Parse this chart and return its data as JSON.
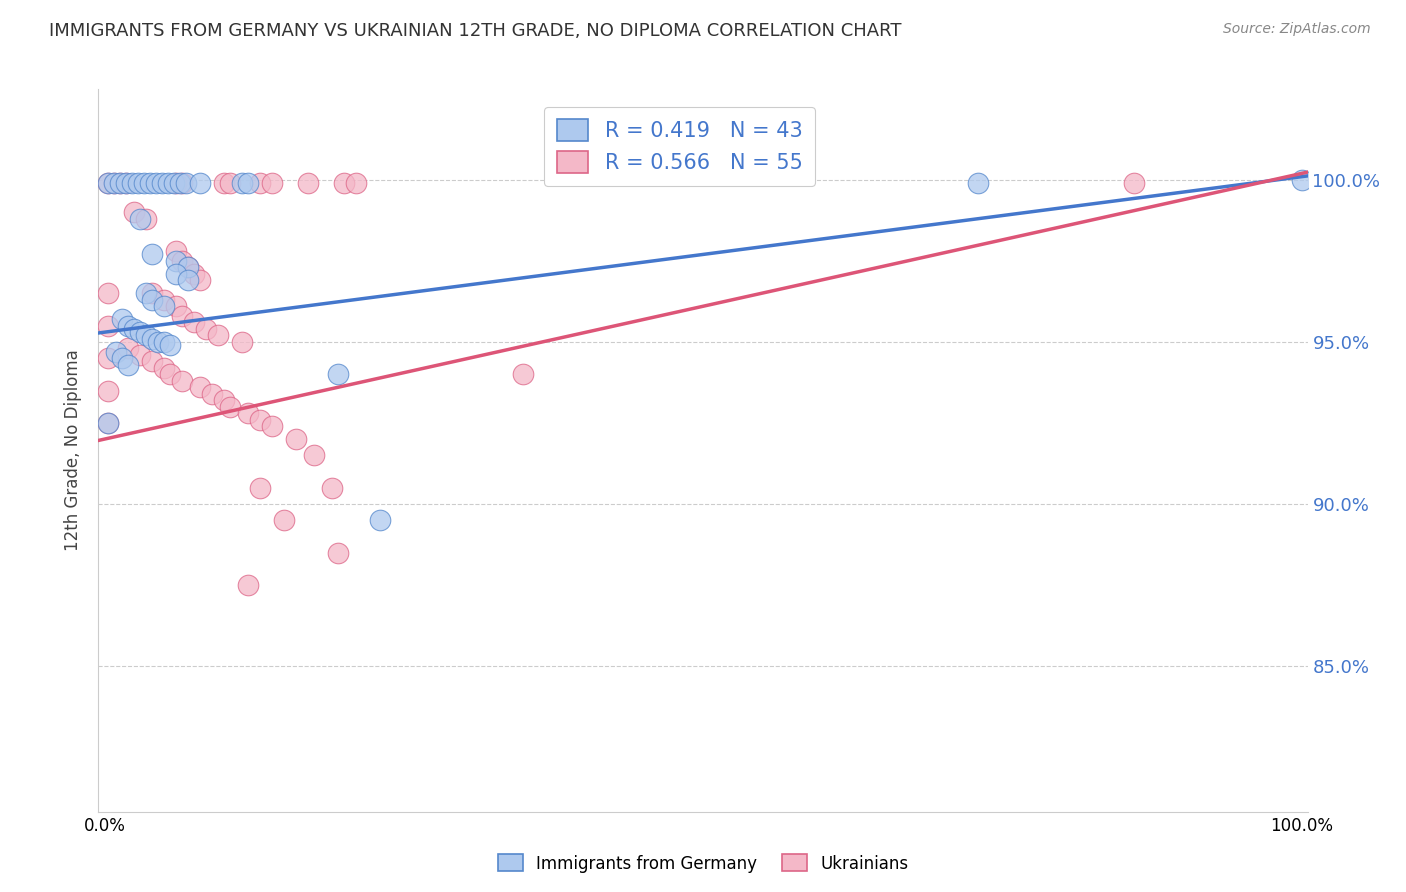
{
  "title": "IMMIGRANTS FROM GERMANY VS UKRAINIAN 12TH GRADE, NO DIPLOMA CORRELATION CHART",
  "source": "Source: ZipAtlas.com",
  "ylabel": "12th Grade, No Diploma",
  "ytick_labels": [
    "100.0%",
    "95.0%",
    "90.0%",
    "85.0%"
  ],
  "ytick_positions": [
    1.0,
    0.95,
    0.9,
    0.85
  ],
  "xlim": [
    -0.005,
    1.005
  ],
  "ylim": [
    0.805,
    1.028
  ],
  "legend_label_blue": "Immigrants from Germany",
  "legend_label_pink": "Ukrainians",
  "R_blue": 0.419,
  "N_blue": 43,
  "R_pink": 0.566,
  "N_pink": 55,
  "background_color": "#ffffff",
  "grid_color": "#cccccc",
  "blue_fill": "#aec9ee",
  "pink_fill": "#f4b8c8",
  "blue_edge": "#5588cc",
  "pink_edge": "#dd6688",
  "blue_line": "#4477cc",
  "pink_line": "#dd5577",
  "blue_points": [
    [
      0.003,
      0.999
    ],
    [
      0.008,
      0.999
    ],
    [
      0.013,
      0.999
    ],
    [
      0.018,
      0.999
    ],
    [
      0.023,
      0.999
    ],
    [
      0.028,
      0.999
    ],
    [
      0.033,
      0.999
    ],
    [
      0.038,
      0.999
    ],
    [
      0.043,
      0.999
    ],
    [
      0.048,
      0.999
    ],
    [
      0.053,
      0.999
    ],
    [
      0.058,
      0.999
    ],
    [
      0.063,
      0.999
    ],
    [
      0.068,
      0.999
    ],
    [
      0.08,
      0.999
    ],
    [
      0.115,
      0.999
    ],
    [
      0.12,
      0.999
    ],
    [
      0.73,
      0.999
    ],
    [
      1.0,
      1.0
    ],
    [
      0.03,
      0.988
    ],
    [
      0.04,
      0.977
    ],
    [
      0.06,
      0.975
    ],
    [
      0.07,
      0.973
    ],
    [
      0.06,
      0.971
    ],
    [
      0.07,
      0.969
    ],
    [
      0.035,
      0.965
    ],
    [
      0.04,
      0.963
    ],
    [
      0.05,
      0.961
    ],
    [
      0.015,
      0.957
    ],
    [
      0.02,
      0.955
    ],
    [
      0.025,
      0.954
    ],
    [
      0.03,
      0.953
    ],
    [
      0.035,
      0.952
    ],
    [
      0.04,
      0.951
    ],
    [
      0.045,
      0.95
    ],
    [
      0.05,
      0.95
    ],
    [
      0.055,
      0.949
    ],
    [
      0.01,
      0.947
    ],
    [
      0.015,
      0.945
    ],
    [
      0.02,
      0.943
    ],
    [
      0.195,
      0.94
    ],
    [
      0.003,
      0.925
    ],
    [
      0.23,
      0.895
    ]
  ],
  "pink_points": [
    [
      0.003,
      0.999
    ],
    [
      0.008,
      0.999
    ],
    [
      0.013,
      0.999
    ],
    [
      0.018,
      0.999
    ],
    [
      0.06,
      0.999
    ],
    [
      0.065,
      0.999
    ],
    [
      0.1,
      0.999
    ],
    [
      0.105,
      0.999
    ],
    [
      0.13,
      0.999
    ],
    [
      0.14,
      0.999
    ],
    [
      0.17,
      0.999
    ],
    [
      0.2,
      0.999
    ],
    [
      0.21,
      0.999
    ],
    [
      0.86,
      0.999
    ],
    [
      0.025,
      0.99
    ],
    [
      0.035,
      0.988
    ],
    [
      0.06,
      0.978
    ],
    [
      0.065,
      0.975
    ],
    [
      0.07,
      0.973
    ],
    [
      0.075,
      0.971
    ],
    [
      0.08,
      0.969
    ],
    [
      0.04,
      0.965
    ],
    [
      0.05,
      0.963
    ],
    [
      0.06,
      0.961
    ],
    [
      0.065,
      0.958
    ],
    [
      0.075,
      0.956
    ],
    [
      0.085,
      0.954
    ],
    [
      0.095,
      0.952
    ],
    [
      0.115,
      0.95
    ],
    [
      0.02,
      0.948
    ],
    [
      0.03,
      0.946
    ],
    [
      0.04,
      0.944
    ],
    [
      0.05,
      0.942
    ],
    [
      0.055,
      0.94
    ],
    [
      0.065,
      0.938
    ],
    [
      0.08,
      0.936
    ],
    [
      0.09,
      0.934
    ],
    [
      0.1,
      0.932
    ],
    [
      0.105,
      0.93
    ],
    [
      0.12,
      0.928
    ],
    [
      0.13,
      0.926
    ],
    [
      0.14,
      0.924
    ],
    [
      0.16,
      0.92
    ],
    [
      0.175,
      0.915
    ],
    [
      0.19,
      0.905
    ],
    [
      0.003,
      0.965
    ],
    [
      0.003,
      0.955
    ],
    [
      0.003,
      0.945
    ],
    [
      0.003,
      0.935
    ],
    [
      0.003,
      0.925
    ],
    [
      0.35,
      0.94
    ],
    [
      0.13,
      0.905
    ],
    [
      0.15,
      0.895
    ],
    [
      0.195,
      0.885
    ],
    [
      0.12,
      0.875
    ]
  ]
}
